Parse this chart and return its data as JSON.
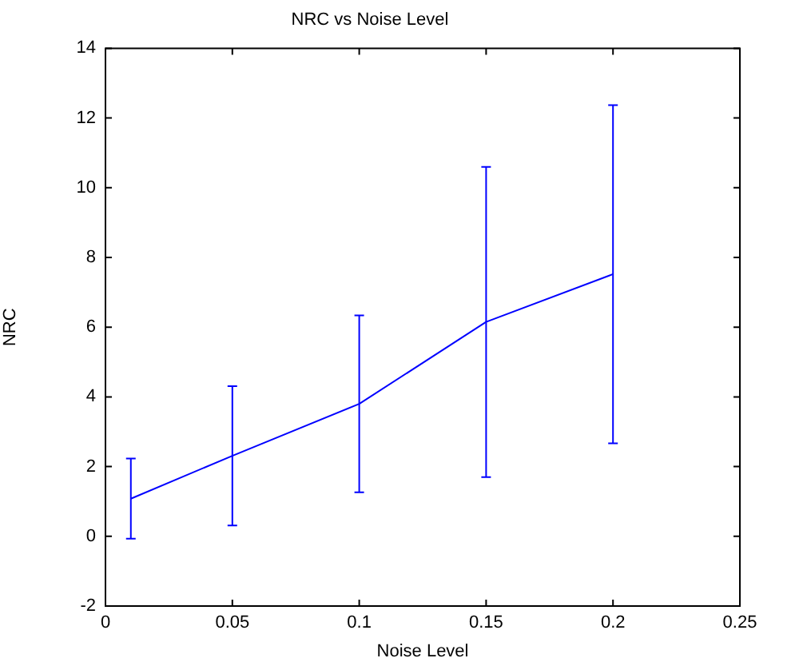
{
  "chart_data": {
    "type": "line",
    "title": "NRC vs Noise Level",
    "xlabel": "Noise Level",
    "ylabel": "NRC",
    "x": [
      0.01,
      0.05,
      0.1,
      0.15,
      0.2
    ],
    "series": [
      {
        "color": "#0000ff",
        "values": [
          1.08,
          2.31,
          3.8,
          6.15,
          7.52
        ],
        "errors": [
          1.15,
          2.0,
          2.54,
          4.45,
          4.85
        ]
      }
    ],
    "xlim": [
      0,
      0.25
    ],
    "xticks": [
      0,
      0.05,
      0.1,
      0.15,
      0.2,
      0.25
    ],
    "ylim": [
      -2,
      14
    ],
    "yticks": [
      -2,
      0,
      2,
      4,
      6,
      8,
      10,
      12,
      14
    ],
    "grid": false,
    "legend": false,
    "marker": "none",
    "line_style": "solid"
  }
}
